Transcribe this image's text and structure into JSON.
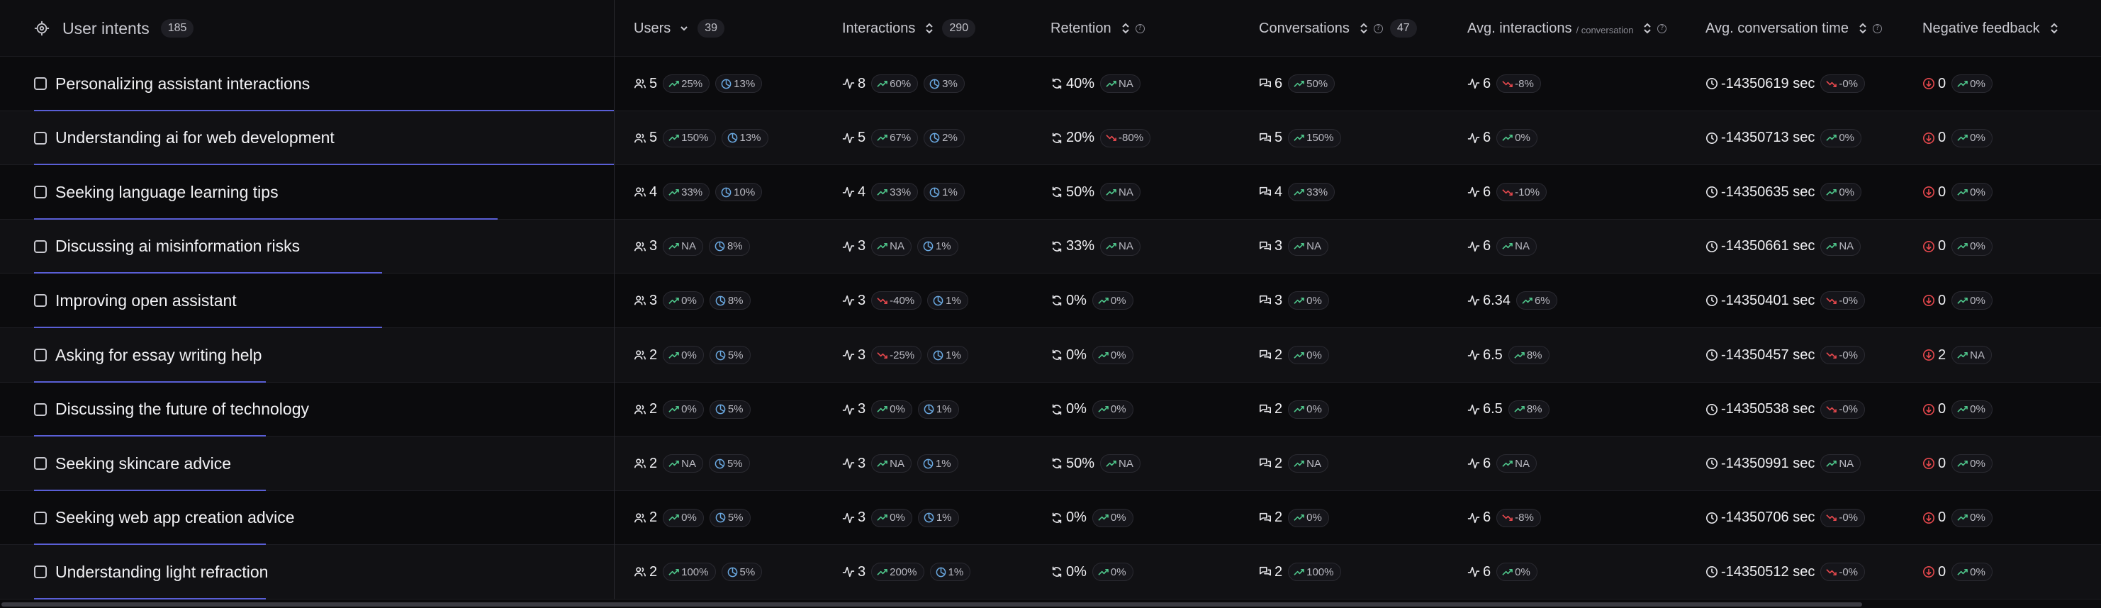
{
  "header": {
    "intents": {
      "label": "User intents",
      "count": "185"
    },
    "users": {
      "label": "Users",
      "count": "39"
    },
    "interactions": {
      "label": "Interactions",
      "count": "290"
    },
    "retention": {
      "label": "Retention"
    },
    "conversations": {
      "label": "Conversations",
      "count": "47"
    },
    "avg_interactions": {
      "label": "Avg. interactions",
      "sub": "/ conversation"
    },
    "avg_time": {
      "label": "Avg. conversation time"
    },
    "negative": {
      "label": "Negative feedback"
    }
  },
  "colors": {
    "up": "#4ec48a",
    "down": "#e5484d",
    "share": "#6aa8e0",
    "accent": "#5a5fd6"
  },
  "rows": [
    {
      "intent": "Personalizing assistant interactions",
      "bar": 1.0,
      "users": "5",
      "users_trend": "25%",
      "users_trend_dir": "up",
      "users_share": "13%",
      "inter": "8",
      "inter_trend": "60%",
      "inter_trend_dir": "up",
      "inter_share": "3%",
      "ret": "40%",
      "ret_trend": "NA",
      "ret_trend_dir": "up",
      "conv": "6",
      "conv_trend": "50%",
      "conv_trend_dir": "up",
      "avg": "6",
      "avg_trend": "-8%",
      "avg_trend_dir": "down",
      "time": "-14350619 sec",
      "time_trend": "-0%",
      "time_trend_dir": "down",
      "neg": "0",
      "neg_dir": "down",
      "neg_trend": "0%",
      "neg_trend_dir": "up"
    },
    {
      "intent": "Understanding ai for web development",
      "bar": 1.0,
      "users": "5",
      "users_trend": "150%",
      "users_trend_dir": "up",
      "users_share": "13%",
      "inter": "5",
      "inter_trend": "67%",
      "inter_trend_dir": "up",
      "inter_share": "2%",
      "ret": "20%",
      "ret_trend": "-80%",
      "ret_trend_dir": "down",
      "conv": "5",
      "conv_trend": "150%",
      "conv_trend_dir": "up",
      "avg": "6",
      "avg_trend": "0%",
      "avg_trend_dir": "up",
      "time": "-14350713 sec",
      "time_trend": "0%",
      "time_trend_dir": "up",
      "neg": "0",
      "neg_dir": "down",
      "neg_trend": "0%",
      "neg_trend_dir": "up"
    },
    {
      "intent": "Seeking language learning tips",
      "bar": 0.8,
      "users": "4",
      "users_trend": "33%",
      "users_trend_dir": "up",
      "users_share": "10%",
      "inter": "4",
      "inter_trend": "33%",
      "inter_trend_dir": "up",
      "inter_share": "1%",
      "ret": "50%",
      "ret_trend": "NA",
      "ret_trend_dir": "up",
      "conv": "4",
      "conv_trend": "33%",
      "conv_trend_dir": "up",
      "avg": "6",
      "avg_trend": "-10%",
      "avg_trend_dir": "down",
      "time": "-14350635 sec",
      "time_trend": "0%",
      "time_trend_dir": "up",
      "neg": "0",
      "neg_dir": "down",
      "neg_trend": "0%",
      "neg_trend_dir": "up"
    },
    {
      "intent": "Discussing ai misinformation risks",
      "bar": 0.6,
      "users": "3",
      "users_trend": "NA",
      "users_trend_dir": "up",
      "users_share": "8%",
      "inter": "3",
      "inter_trend": "NA",
      "inter_trend_dir": "up",
      "inter_share": "1%",
      "ret": "33%",
      "ret_trend": "NA",
      "ret_trend_dir": "up",
      "conv": "3",
      "conv_trend": "NA",
      "conv_trend_dir": "up",
      "avg": "6",
      "avg_trend": "NA",
      "avg_trend_dir": "up",
      "time": "-14350661 sec",
      "time_trend": "NA",
      "time_trend_dir": "up",
      "neg": "0",
      "neg_dir": "down",
      "neg_trend": "0%",
      "neg_trend_dir": "up"
    },
    {
      "intent": "Improving open assistant",
      "bar": 0.6,
      "users": "3",
      "users_trend": "0%",
      "users_trend_dir": "up",
      "users_share": "8%",
      "inter": "3",
      "inter_trend": "-40%",
      "inter_trend_dir": "down",
      "inter_share": "1%",
      "ret": "0%",
      "ret_trend": "0%",
      "ret_trend_dir": "up",
      "conv": "3",
      "conv_trend": "0%",
      "conv_trend_dir": "up",
      "avg": "6.34",
      "avg_trend": "6%",
      "avg_trend_dir": "up",
      "time": "-14350401 sec",
      "time_trend": "-0%",
      "time_trend_dir": "down",
      "neg": "0",
      "neg_dir": "down",
      "neg_trend": "0%",
      "neg_trend_dir": "up"
    },
    {
      "intent": "Asking for essay writing help",
      "bar": 0.4,
      "users": "2",
      "users_trend": "0%",
      "users_trend_dir": "up",
      "users_share": "5%",
      "inter": "3",
      "inter_trend": "-25%",
      "inter_trend_dir": "down",
      "inter_share": "1%",
      "ret": "0%",
      "ret_trend": "0%",
      "ret_trend_dir": "up",
      "conv": "2",
      "conv_trend": "0%",
      "conv_trend_dir": "up",
      "avg": "6.5",
      "avg_trend": "8%",
      "avg_trend_dir": "up",
      "time": "-14350457 sec",
      "time_trend": "-0%",
      "time_trend_dir": "down",
      "neg": "2",
      "neg_dir": "down",
      "neg_trend": "NA",
      "neg_trend_dir": "up"
    },
    {
      "intent": "Discussing the future of technology",
      "bar": 0.4,
      "users": "2",
      "users_trend": "0%",
      "users_trend_dir": "up",
      "users_share": "5%",
      "inter": "3",
      "inter_trend": "0%",
      "inter_trend_dir": "up",
      "inter_share": "1%",
      "ret": "0%",
      "ret_trend": "0%",
      "ret_trend_dir": "up",
      "conv": "2",
      "conv_trend": "0%",
      "conv_trend_dir": "up",
      "avg": "6.5",
      "avg_trend": "8%",
      "avg_trend_dir": "up",
      "time": "-14350538 sec",
      "time_trend": "-0%",
      "time_trend_dir": "down",
      "neg": "0",
      "neg_dir": "down",
      "neg_trend": "0%",
      "neg_trend_dir": "up"
    },
    {
      "intent": "Seeking skincare advice",
      "bar": 0.4,
      "users": "2",
      "users_trend": "NA",
      "users_trend_dir": "up",
      "users_share": "5%",
      "inter": "3",
      "inter_trend": "NA",
      "inter_trend_dir": "up",
      "inter_share": "1%",
      "ret": "50%",
      "ret_trend": "NA",
      "ret_trend_dir": "up",
      "conv": "2",
      "conv_trend": "NA",
      "conv_trend_dir": "up",
      "avg": "6",
      "avg_trend": "NA",
      "avg_trend_dir": "up",
      "time": "-14350991 sec",
      "time_trend": "NA",
      "time_trend_dir": "up",
      "neg": "0",
      "neg_dir": "down",
      "neg_trend": "0%",
      "neg_trend_dir": "up"
    },
    {
      "intent": "Seeking web app creation advice",
      "bar": 0.4,
      "users": "2",
      "users_trend": "0%",
      "users_trend_dir": "up",
      "users_share": "5%",
      "inter": "3",
      "inter_trend": "0%",
      "inter_trend_dir": "up",
      "inter_share": "1%",
      "ret": "0%",
      "ret_trend": "0%",
      "ret_trend_dir": "up",
      "conv": "2",
      "conv_trend": "0%",
      "conv_trend_dir": "up",
      "avg": "6",
      "avg_trend": "-8%",
      "avg_trend_dir": "down",
      "time": "-14350706 sec",
      "time_trend": "-0%",
      "time_trend_dir": "down",
      "neg": "0",
      "neg_dir": "down",
      "neg_trend": "0%",
      "neg_trend_dir": "up"
    },
    {
      "intent": "Understanding light refraction",
      "bar": 0.4,
      "users": "2",
      "users_trend": "100%",
      "users_trend_dir": "up",
      "users_share": "5%",
      "inter": "3",
      "inter_trend": "200%",
      "inter_trend_dir": "up",
      "inter_share": "1%",
      "ret": "0%",
      "ret_trend": "0%",
      "ret_trend_dir": "up",
      "conv": "2",
      "conv_trend": "100%",
      "conv_trend_dir": "up",
      "avg": "6",
      "avg_trend": "0%",
      "avg_trend_dir": "up",
      "time": "-14350512 sec",
      "time_trend": "-0%",
      "time_trend_dir": "down",
      "neg": "0",
      "neg_dir": "down",
      "neg_trend": "0%",
      "neg_trend_dir": "up"
    }
  ]
}
